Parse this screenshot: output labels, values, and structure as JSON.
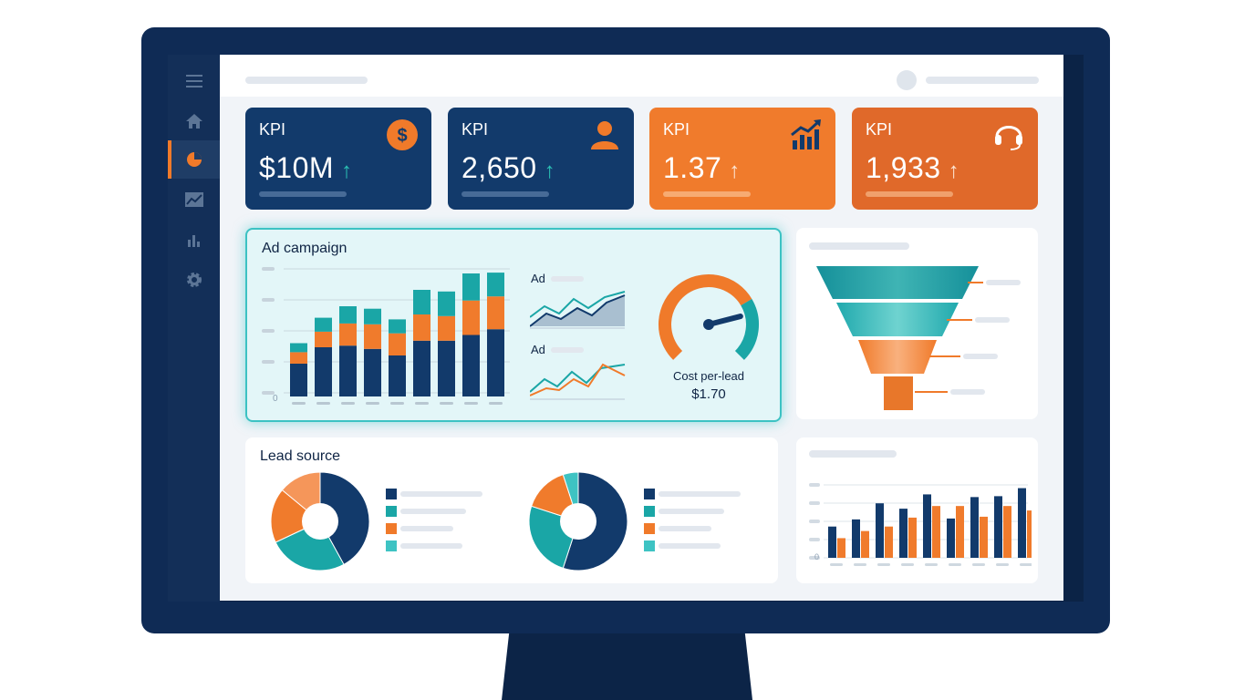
{
  "kpis": [
    {
      "label": "KPI",
      "value": "$10M",
      "icon": "dollar-icon",
      "color": "#123a6b"
    },
    {
      "label": "KPI",
      "value": "2,650",
      "icon": "user-icon",
      "color": "#123a6b"
    },
    {
      "label": "KPI",
      "value": "1.37",
      "icon": "growth-chart-icon",
      "color": "#f07b2c"
    },
    {
      "label": "KPI",
      "value": "1,933",
      "icon": "headset-icon",
      "color": "#e0692a"
    }
  ],
  "sidebar": {
    "icons": [
      "menu-icon",
      "home-icon",
      "pie-chart-icon",
      "line-chart-icon",
      "bar-chart-icon",
      "gear-icon"
    ],
    "active_index": 2
  },
  "ad_campaign": {
    "title": "Ad campaign",
    "mini_chart_1_label": "Ad",
    "mini_chart_2_label": "Ad",
    "gauge": {
      "label": "Cost per-lead",
      "value": "$1.70",
      "level": 0.78
    },
    "y_axis_zero": "0"
  },
  "lead_source": {
    "title": "Lead source"
  },
  "bottom_right_chart": {
    "y_axis_zero": "0"
  },
  "colors": {
    "navy": "#123a6b",
    "teal": "#1aa6a6",
    "orange": "#f07b2c",
    "light_teal": "#3ec3c3"
  },
  "chart_data": [
    {
      "type": "bar",
      "title": "Ad campaign",
      "categories": [
        "",
        "",
        "",
        "",
        "",
        "",
        "",
        "",
        ""
      ],
      "series": [
        {
          "values": [
            40,
            60,
            62,
            58,
            50,
            68,
            68,
            75,
            82
          ]
        },
        {
          "values": [
            14,
            19,
            27,
            30,
            27,
            32,
            30,
            42,
            40
          ]
        },
        {
          "values": [
            11,
            17,
            21,
            19,
            17,
            30,
            30,
            33,
            29
          ]
        }
      ],
      "stacked": true
    },
    {
      "type": "pie",
      "title": "",
      "values": [
        42,
        26,
        18,
        14
      ]
    },
    {
      "type": "pie",
      "title": "",
      "values": [
        55,
        25,
        15,
        5
      ]
    },
    {
      "type": "bar",
      "title": "",
      "categories": [
        "",
        "",
        "",
        "",
        "",
        "",
        "",
        "",
        ""
      ],
      "series": [
        {
          "values": [
            35,
            43,
            61,
            55,
            71,
            44,
            68,
            69,
            78
          ]
        },
        {
          "values": [
            22,
            30,
            35,
            45,
            58,
            58,
            46,
            58,
            53
          ]
        }
      ]
    }
  ]
}
